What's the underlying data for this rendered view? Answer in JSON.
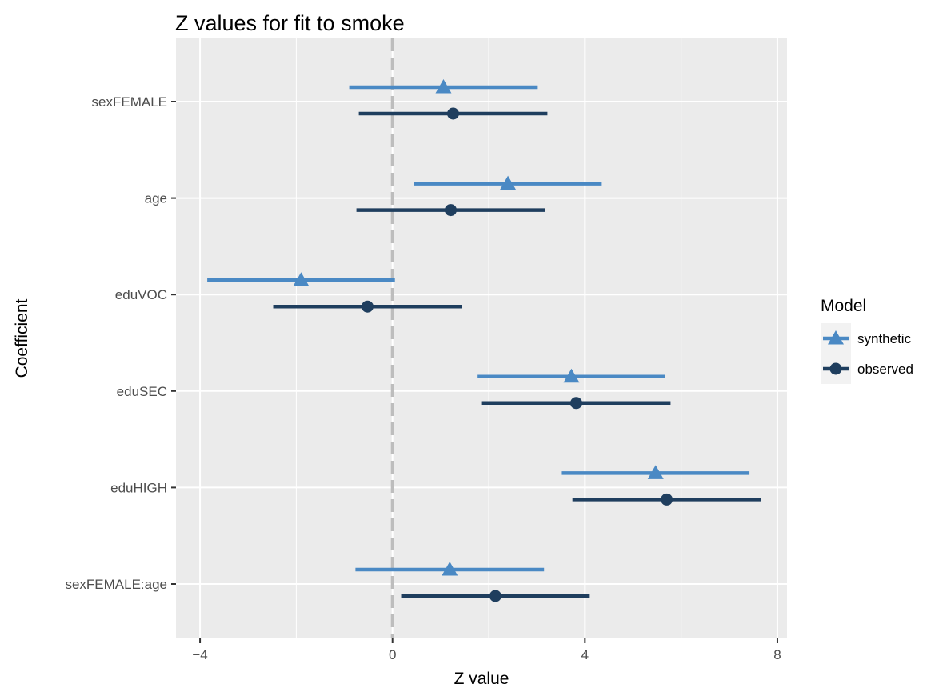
{
  "chart_data": {
    "type": "scatter",
    "title": "Z values for fit to smoke",
    "xlabel": "Z value",
    "ylabel": "Coefficient",
    "xlim": [
      -4.5,
      8.2
    ],
    "xticks": [
      -4,
      0,
      4,
      8
    ],
    "xtick_labels": [
      "−4",
      "0",
      "4",
      "8"
    ],
    "categories": [
      "sexFEMALE",
      "age",
      "eduVOC",
      "eduSEC",
      "eduHIGH",
      "sexFEMALE:age"
    ],
    "grid": true,
    "reference_line": 0,
    "legend": {
      "title": "Model",
      "placement": "right"
    },
    "series": [
      {
        "name": "synthetic",
        "marker": "triangle",
        "color": "#4a89c4",
        "values": [
          1.06,
          2.4,
          -1.9,
          3.72,
          5.47,
          1.19
        ],
        "lower": [
          -0.9,
          0.45,
          -3.85,
          1.77,
          3.52,
          -0.77
        ],
        "upper": [
          3.02,
          4.35,
          0.05,
          5.67,
          7.42,
          3.15
        ]
      },
      {
        "name": "observed",
        "marker": "circle",
        "color": "#1f3e5e",
        "values": [
          1.26,
          1.21,
          -0.52,
          3.82,
          5.7,
          2.14
        ],
        "lower": [
          -0.7,
          -0.75,
          -2.48,
          1.86,
          3.74,
          0.18
        ],
        "upper": [
          3.22,
          3.17,
          1.44,
          5.78,
          7.66,
          4.1
        ]
      }
    ]
  }
}
